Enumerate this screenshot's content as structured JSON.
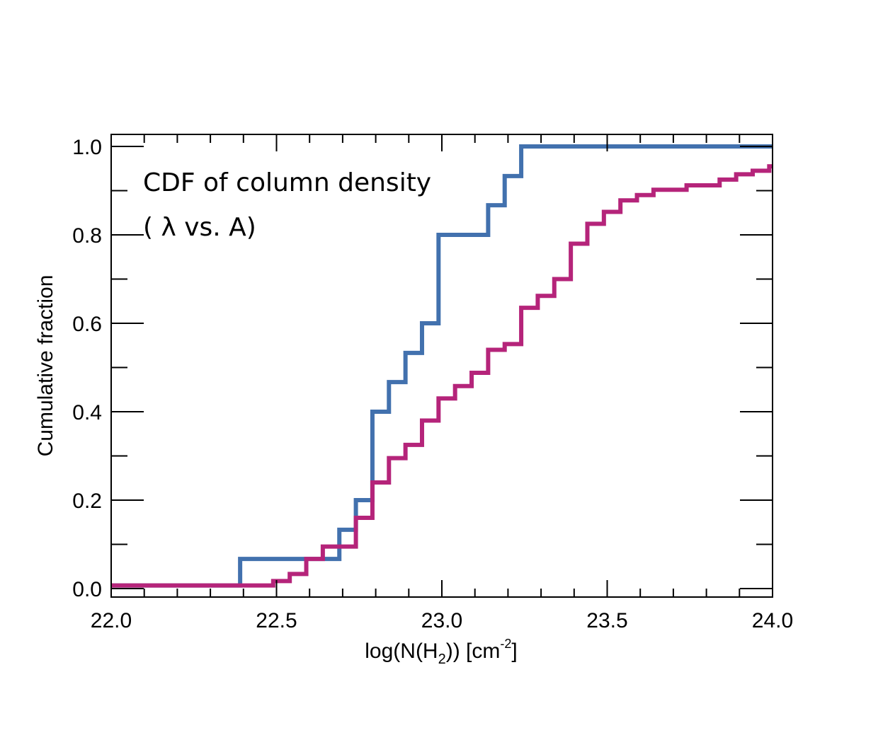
{
  "chart_data": {
    "type": "line",
    "step": true,
    "title": "",
    "annotations": [
      "CDF of column density",
      "( λ vs. A)"
    ],
    "xlabel": {
      "base": "log(N(H",
      "sub": "2",
      "mid": ")) [cm",
      "sup": "-2",
      "end": "]"
    },
    "ylabel": "Cumulative fraction",
    "xlim": [
      22.0,
      24.0
    ],
    "ylim": [
      -0.015,
      1.0
    ],
    "x_ticks": [
      22.0,
      22.5,
      23.0,
      23.5,
      24.0
    ],
    "x_tick_labels": [
      "22.0",
      "22.5",
      "23.0",
      "23.5",
      "24.0"
    ],
    "y_ticks": [
      0.0,
      0.2,
      0.4,
      0.6,
      0.8,
      1.0
    ],
    "y_tick_labels": [
      "0.0",
      "0.2",
      "0.4",
      "0.6",
      "0.8",
      "1.0"
    ],
    "series": [
      {
        "name": "blue",
        "color": "#4271ae",
        "x": [
          22.0,
          22.39,
          22.69,
          22.74,
          22.79,
          22.84,
          22.89,
          22.94,
          22.99,
          23.14,
          23.19,
          23.24,
          24.0
        ],
        "y": [
          0.007,
          0.067,
          0.133,
          0.2,
          0.4,
          0.467,
          0.533,
          0.6,
          0.8,
          0.867,
          0.933,
          1.0,
          1.0
        ]
      },
      {
        "name": "magenta",
        "color": "#b5247a",
        "x": [
          22.0,
          22.49,
          22.54,
          22.59,
          22.64,
          22.69,
          22.74,
          22.79,
          22.84,
          22.89,
          22.94,
          22.99,
          23.04,
          23.09,
          23.14,
          23.19,
          23.24,
          23.29,
          23.34,
          23.39,
          23.44,
          23.49,
          23.54,
          23.59,
          23.64,
          23.69,
          23.74,
          23.79,
          23.84,
          23.89,
          23.94,
          23.99
        ],
        "y": [
          0.007,
          0.017,
          0.033,
          0.067,
          0.095,
          0.095,
          0.16,
          0.24,
          0.295,
          0.325,
          0.38,
          0.43,
          0.458,
          0.488,
          0.54,
          0.553,
          0.635,
          0.662,
          0.7,
          0.78,
          0.825,
          0.852,
          0.878,
          0.89,
          0.902,
          0.902,
          0.912,
          0.912,
          0.925,
          0.937,
          0.945,
          0.955
        ]
      }
    ]
  }
}
